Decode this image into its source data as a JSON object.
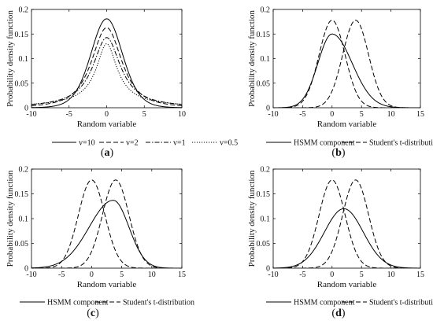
{
  "figure": {
    "background": "#ffffff",
    "line_color": "#000000"
  },
  "chart_data": [
    {
      "type": "line",
      "panel_label": "(a)",
      "xlabel": "Random variable",
      "ylabel": "Probability density function",
      "xlim": [
        -10,
        10
      ],
      "ylim": [
        0,
        0.2
      ],
      "xticks": [
        -10,
        -5,
        0,
        5,
        10
      ],
      "xtick_labels": [
        "-10",
        "-5",
        "0",
        "5",
        "10"
      ],
      "yticks": [
        0,
        0.05,
        0.1,
        0.15,
        0.2
      ],
      "ytick_labels": [
        "0",
        "0.05",
        "0.1",
        "0.15",
        "0.2"
      ],
      "grid": false,
      "legend_position": "bottom",
      "series": [
        {
          "name": "v=10",
          "style": "solid",
          "dist": "student_t",
          "df": 10,
          "loc": 0,
          "scale": 2.15
        },
        {
          "name": "v=2",
          "style": "dashed",
          "dist": "student_t",
          "df": 2,
          "loc": 0,
          "scale": 2.17
        },
        {
          "name": "v=1",
          "style": "dashdot",
          "dist": "student_t",
          "df": 1,
          "loc": 0,
          "scale": 2.23
        },
        {
          "name": "v=0.5",
          "style": "dotted",
          "dist": "student_t",
          "df": 0.5,
          "loc": 0,
          "scale": 2.07
        }
      ]
    },
    {
      "type": "line",
      "panel_label": "(b)",
      "xlabel": "Random variable",
      "ylabel": "Probability density function",
      "xlim": [
        -10,
        15
      ],
      "ylim": [
        0,
        0.2
      ],
      "xticks": [
        -10,
        -5,
        0,
        5,
        10,
        15
      ],
      "xtick_labels": [
        "-10",
        "-5",
        "0",
        "5",
        "10",
        "15"
      ],
      "yticks": [
        0,
        0.05,
        0.1,
        0.15,
        0.2
      ],
      "ytick_labels": [
        "0",
        "0.05",
        "0.1",
        "0.15",
        "0.2"
      ],
      "grid": false,
      "legend_position": "bottom",
      "series": [
        {
          "name": "HSMM component",
          "style": "solid",
          "dist": "skew_normal",
          "peak": 0.15,
          "mode": 0,
          "sigma_left": 2.4,
          "sigma_right": 3.4
        },
        {
          "name": "Student's t-distribution",
          "style": "dashed",
          "dist": "normal",
          "peak": 0.178,
          "loc": 0,
          "sigma": 2.2
        },
        {
          "name": "",
          "style": "dashed",
          "dist": "normal",
          "peak": 0.178,
          "loc": 4,
          "sigma": 2.2
        }
      ]
    },
    {
      "type": "line",
      "panel_label": "(c)",
      "xlabel": "Random variable",
      "ylabel": "Probability density function",
      "xlim": [
        -10,
        15
      ],
      "ylim": [
        0,
        0.2
      ],
      "xticks": [
        -10,
        -5,
        0,
        5,
        10,
        15
      ],
      "xtick_labels": [
        "-10",
        "-5",
        "0",
        "5",
        "10",
        "15"
      ],
      "yticks": [
        0,
        0.05,
        0.1,
        0.15,
        0.2
      ],
      "ytick_labels": [
        "0",
        "0.05",
        "0.1",
        "0.15",
        "0.2"
      ],
      "grid": false,
      "legend_position": "bottom",
      "series": [
        {
          "name": "HSMM component",
          "style": "solid",
          "dist": "skew_normal",
          "peak": 0.137,
          "mode": 3.6,
          "sigma_left": 4.0,
          "sigma_right": 2.6
        },
        {
          "name": "Student's t-distribution",
          "style": "dashed",
          "dist": "normal",
          "peak": 0.178,
          "loc": 0,
          "sigma": 2.2
        },
        {
          "name": "",
          "style": "dashed",
          "dist": "normal",
          "peak": 0.178,
          "loc": 4,
          "sigma": 2.2
        }
      ]
    },
    {
      "type": "line",
      "panel_label": "(d)",
      "xlabel": "Random variable",
      "ylabel": "Probability density function",
      "xlim": [
        -10,
        15
      ],
      "ylim": [
        0,
        0.2
      ],
      "xticks": [
        -10,
        -5,
        0,
        5,
        10,
        15
      ],
      "xtick_labels": [
        "-10",
        "-5",
        "0",
        "5",
        "10",
        "15"
      ],
      "yticks": [
        0,
        0.05,
        0.1,
        0.15,
        0.2
      ],
      "ytick_labels": [
        "0",
        "0.05",
        "0.1",
        "0.15",
        "0.2"
      ],
      "grid": false,
      "legend_position": "bottom",
      "series": [
        {
          "name": "HSMM component",
          "style": "solid",
          "dist": "normal",
          "peak": 0.12,
          "loc": 2,
          "sigma": 3.3
        },
        {
          "name": "Student's t-distribution",
          "style": "dashed",
          "dist": "normal",
          "peak": 0.178,
          "loc": 0,
          "sigma": 2.2
        },
        {
          "name": "",
          "style": "dashed",
          "dist": "normal",
          "peak": 0.178,
          "loc": 4,
          "sigma": 2.2
        }
      ]
    }
  ]
}
